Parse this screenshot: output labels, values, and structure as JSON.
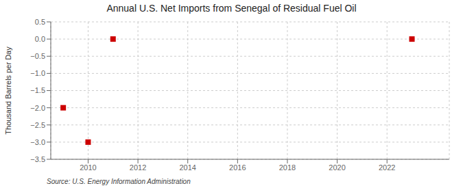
{
  "chart_data": {
    "type": "scatter",
    "title": "Annual U.S. Net Imports from Senegal of Residual Fuel Oil",
    "ylabel": "Thousand Barrels per Day",
    "annotations": [
      "Source: U.S. Energy Information Administration"
    ],
    "x": [
      2009,
      2010,
      2011,
      2023
    ],
    "values": [
      -2.0,
      -3.0,
      0.0,
      0.0
    ],
    "color": "#cc0000",
    "marker": "square",
    "line_style": "none",
    "xlim": [
      2008.5,
      2024.5
    ],
    "xticks": [
      2010,
      2012,
      2014,
      2016,
      2018,
      2020,
      2022
    ],
    "ylim": [
      -3.5,
      0.5
    ],
    "yticks": [
      0.5,
      {
        "value": 0.0,
        "label": "0.0"
      },
      {
        "value": -0.5,
        "label": "−0.5"
      },
      {
        "value": -1.0,
        "label": "−1.0"
      },
      {
        "value": -1.5,
        "label": "−1.5"
      },
      {
        "value": -2.0,
        "label": "−2.0"
      },
      {
        "value": -2.5,
        "label": "−2.5"
      },
      {
        "value": -3.0,
        "label": "−3.0"
      },
      {
        "value": -3.5,
        "label": "−3.5"
      }
    ],
    "grid": true
  }
}
